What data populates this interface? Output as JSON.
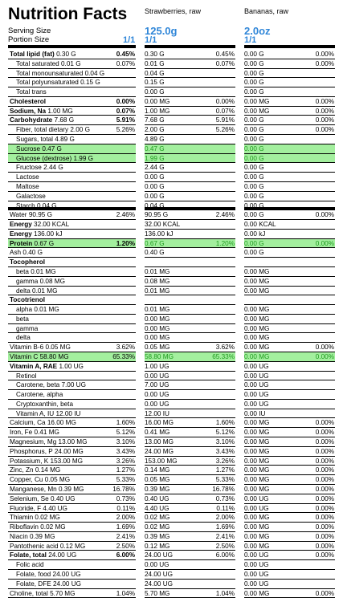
{
  "header": {
    "title": "Nutrition Facts",
    "food1": "Strawberries, raw",
    "food2": "Bananas, raw",
    "serving_size_label": "Serving Size",
    "portion_size_label": "Portion Size",
    "serving1": "125.0g",
    "serving2": "2.0oz",
    "ratio0": "1/1",
    "ratio1": "1/1",
    "ratio2": "1/1"
  },
  "rows": [
    {
      "name": "Total lipid (fat)",
      "amt": "0.30 G",
      "pct": "0.45%",
      "v1": "0.30 G",
      "p1": "0.45%",
      "v2": "0.00 G",
      "p2": "0.00%",
      "bold": true,
      "indent": false
    },
    {
      "name": "Total saturated",
      "amt": "0.01 G",
      "pct": "0.07%",
      "v1": "0.01 G",
      "p1": "0.07%",
      "v2": "0.00 G",
      "p2": "0.00%",
      "bold": false,
      "indent": true
    },
    {
      "name": "Total monounsaturated",
      "amt": "0.04 G",
      "pct": "",
      "v1": "0.04 G",
      "p1": "",
      "v2": "0.00 G",
      "p2": "",
      "bold": false,
      "indent": true
    },
    {
      "name": "Total polyunsaturated",
      "amt": "0.15 G",
      "pct": "",
      "v1": "0.15 G",
      "p1": "",
      "v2": "0.00 G",
      "p2": "",
      "bold": false,
      "indent": true
    },
    {
      "name": "Total trans",
      "amt": "",
      "pct": "",
      "v1": "0.00 G",
      "p1": "",
      "v2": "0.00 G",
      "p2": "",
      "bold": false,
      "indent": true
    },
    {
      "name": "Cholesterol",
      "amt": "",
      "pct": "0.00%",
      "v1": "0.00 MG",
      "p1": "0.00%",
      "v2": "0.00 MG",
      "p2": "0.00%",
      "bold": true,
      "indent": false
    },
    {
      "name": "Sodium, Na",
      "amt": "1.00 MG",
      "pct": "0.07%",
      "v1": "1.00 MG",
      "p1": "0.07%",
      "v2": "0.00 MG",
      "p2": "0.00%",
      "bold": true,
      "indent": false
    },
    {
      "name": "Carbohydrate",
      "amt": "7.68 G",
      "pct": "5.91%",
      "v1": "7.68 G",
      "p1": "5.91%",
      "v2": "0.00 G",
      "p2": "0.00%",
      "bold": true,
      "indent": false
    },
    {
      "name": "Fiber, total dietary",
      "amt": "2.00 G",
      "pct": "5.26%",
      "v1": "2.00 G",
      "p1": "5.26%",
      "v2": "0.00 G",
      "p2": "0.00%",
      "bold": false,
      "indent": true
    },
    {
      "name": "Sugars, total",
      "amt": "4.89 G",
      "pct": "",
      "v1": "4.89 G",
      "p1": "",
      "v2": "0.00 G",
      "p2": "",
      "bold": false,
      "indent": true
    },
    {
      "name": "Sucrose",
      "amt": "0.47 G",
      "pct": "",
      "v1": "0.47 G",
      "p1": "",
      "v2": "0.00 G",
      "p2": "",
      "bold": false,
      "indent": true,
      "highlight": true
    },
    {
      "name": "Glucose (dextrose)",
      "amt": "1.99 G",
      "pct": "",
      "v1": "1.99 G",
      "p1": "",
      "v2": "0.00 G",
      "p2": "",
      "bold": false,
      "indent": true,
      "highlight": true
    },
    {
      "name": "Fructose",
      "amt": "2.44 G",
      "pct": "",
      "v1": "2.44 G",
      "p1": "",
      "v2": "0.00 G",
      "p2": "",
      "bold": false,
      "indent": true
    },
    {
      "name": "Lactose",
      "amt": "",
      "pct": "",
      "v1": "0.00 G",
      "p1": "",
      "v2": "0.00 G",
      "p2": "",
      "bold": false,
      "indent": true
    },
    {
      "name": "Maltose",
      "amt": "",
      "pct": "",
      "v1": "0.00 G",
      "p1": "",
      "v2": "0.00 G",
      "p2": "",
      "bold": false,
      "indent": true
    },
    {
      "name": "Galactose",
      "amt": "",
      "pct": "",
      "v1": "0.00 G",
      "p1": "",
      "v2": "0.00 G",
      "p2": "",
      "bold": false,
      "indent": true
    },
    {
      "name": "Starch",
      "amt": "0.04 G",
      "pct": "",
      "v1": "0.04 G",
      "p1": "",
      "v2": "0.00 G",
      "p2": "",
      "bold": false,
      "indent": true,
      "thick": true
    },
    {
      "name": "Water",
      "amt": "90.95 G",
      "pct": "2.46%",
      "v1": "90.95 G",
      "p1": "2.46%",
      "v2": "0.00 G",
      "p2": "0.00%",
      "bold": false,
      "indent": false
    },
    {
      "name": "Energy",
      "amt": "32.00 KCAL",
      "pct": "",
      "v1": "32.00 KCAL",
      "p1": "",
      "v2": "0.00 KCAL",
      "p2": "",
      "bold": true,
      "indent": false
    },
    {
      "name": "Energy",
      "amt": "136.00 kJ",
      "pct": "",
      "v1": "136.00 kJ",
      "p1": "",
      "v2": "0.00 kJ",
      "p2": "",
      "bold": true,
      "indent": false
    },
    {
      "name": "Protein",
      "amt": "0.67 G",
      "pct": "1.20%",
      "v1": "0.67 G",
      "p1": "1.20%",
      "v2": "0.00 G",
      "p2": "0.00%",
      "bold": true,
      "indent": false,
      "highlight": true
    },
    {
      "name": "Ash",
      "amt": "0.40 G",
      "pct": "",
      "v1": "0.40 G",
      "p1": "",
      "v2": "0.00 G",
      "p2": "",
      "bold": false,
      "indent": false
    },
    {
      "name": "Tocopherol",
      "amt": "",
      "pct": "",
      "v1": "",
      "p1": "",
      "v2": "",
      "p2": "",
      "bold": true,
      "indent": false
    },
    {
      "name": "beta",
      "amt": "0.01 MG",
      "pct": "",
      "v1": "0.01 MG",
      "p1": "",
      "v2": "0.00 MG",
      "p2": "",
      "bold": false,
      "indent": true
    },
    {
      "name": "gamma",
      "amt": "0.08 MG",
      "pct": "",
      "v1": "0.08 MG",
      "p1": "",
      "v2": "0.00 MG",
      "p2": "",
      "bold": false,
      "indent": true
    },
    {
      "name": "delta",
      "amt": "0.01 MG",
      "pct": "",
      "v1": "0.01 MG",
      "p1": "",
      "v2": "0.00 MG",
      "p2": "",
      "bold": false,
      "indent": true
    },
    {
      "name": "Tocotrienol",
      "amt": "",
      "pct": "",
      "v1": "",
      "p1": "",
      "v2": "",
      "p2": "",
      "bold": true,
      "indent": false
    },
    {
      "name": "alpha",
      "amt": "0.01 MG",
      "pct": "",
      "v1": "0.01 MG",
      "p1": "",
      "v2": "0.00 MG",
      "p2": "",
      "bold": false,
      "indent": true
    },
    {
      "name": "beta",
      "amt": "",
      "pct": "",
      "v1": "0.00 MG",
      "p1": "",
      "v2": "0.00 MG",
      "p2": "",
      "bold": false,
      "indent": true
    },
    {
      "name": "gamma",
      "amt": "",
      "pct": "",
      "v1": "0.00 MG",
      "p1": "",
      "v2": "0.00 MG",
      "p2": "",
      "bold": false,
      "indent": true
    },
    {
      "name": "delta",
      "amt": "",
      "pct": "",
      "v1": "0.00 MG",
      "p1": "",
      "v2": "0.00 MG",
      "p2": "",
      "bold": false,
      "indent": true
    },
    {
      "name": "Vitamin B-6",
      "amt": "0.05 MG",
      "pct": "3.62%",
      "v1": "0.05 MG",
      "p1": "3.62%",
      "v2": "0.00 MG",
      "p2": "0.00%",
      "bold": false,
      "indent": false
    },
    {
      "name": "Vitamin C",
      "amt": "58.80 MG",
      "pct": "65.33%",
      "v1": "58.80 MG",
      "p1": "65.33%",
      "v2": "0.00 MG",
      "p2": "0.00%",
      "bold": false,
      "indent": false,
      "highlight": true
    },
    {
      "name": "Vitamin A, RAE",
      "amt": "1.00 UG",
      "pct": "",
      "v1": "1.00 UG",
      "p1": "",
      "v2": "0.00 UG",
      "p2": "",
      "bold": true,
      "indent": false
    },
    {
      "name": "Retinol",
      "amt": "",
      "pct": "",
      "v1": "0.00 UG",
      "p1": "",
      "v2": "0.00 UG",
      "p2": "",
      "bold": false,
      "indent": true
    },
    {
      "name": "Carotene, beta",
      "amt": "7.00 UG",
      "pct": "",
      "v1": "7.00 UG",
      "p1": "",
      "v2": "0.00 UG",
      "p2": "",
      "bold": false,
      "indent": true
    },
    {
      "name": "Carotene, alpha",
      "amt": "",
      "pct": "",
      "v1": "0.00 UG",
      "p1": "",
      "v2": "0.00 UG",
      "p2": "",
      "bold": false,
      "indent": true
    },
    {
      "name": "Cryptoxanthin, beta",
      "amt": "",
      "pct": "",
      "v1": "0.00 UG",
      "p1": "",
      "v2": "0.00 UG",
      "p2": "",
      "bold": false,
      "indent": true
    },
    {
      "name": "Vitamin A, IU",
      "amt": "12.00 IU",
      "pct": "",
      "v1": "12.00 IU",
      "p1": "",
      "v2": "0.00 IU",
      "p2": "",
      "bold": false,
      "indent": true
    },
    {
      "name": "Calcium, Ca",
      "amt": "16.00 MG",
      "pct": "1.60%",
      "v1": "16.00 MG",
      "p1": "1.60%",
      "v2": "0.00 MG",
      "p2": "0.00%",
      "bold": false,
      "indent": false
    },
    {
      "name": "Iron, Fe",
      "amt": "0.41 MG",
      "pct": "5.12%",
      "v1": "0.41 MG",
      "p1": "5.12%",
      "v2": "0.00 MG",
      "p2": "0.00%",
      "bold": false,
      "indent": false
    },
    {
      "name": "Magnesium, Mg",
      "amt": "13.00 MG",
      "pct": "3.10%",
      "v1": "13.00 MG",
      "p1": "3.10%",
      "v2": "0.00 MG",
      "p2": "0.00%",
      "bold": false,
      "indent": false
    },
    {
      "name": "Phosphorus, P",
      "amt": "24.00 MG",
      "pct": "3.43%",
      "v1": "24.00 MG",
      "p1": "3.43%",
      "v2": "0.00 MG",
      "p2": "0.00%",
      "bold": false,
      "indent": false
    },
    {
      "name": "Potassium, K",
      "amt": "153.00 MG",
      "pct": "3.26%",
      "v1": "153.00 MG",
      "p1": "3.26%",
      "v2": "0.00 MG",
      "p2": "0.00%",
      "bold": false,
      "indent": false
    },
    {
      "name": "Zinc, Zn",
      "amt": "0.14 MG",
      "pct": "1.27%",
      "v1": "0.14 MG",
      "p1": "1.27%",
      "v2": "0.00 MG",
      "p2": "0.00%",
      "bold": false,
      "indent": false
    },
    {
      "name": "Copper, Cu",
      "amt": "0.05 MG",
      "pct": "5.33%",
      "v1": "0.05 MG",
      "p1": "5.33%",
      "v2": "0.00 MG",
      "p2": "0.00%",
      "bold": false,
      "indent": false
    },
    {
      "name": "Manganese, Mn",
      "amt": "0.39 MG",
      "pct": "16.78%",
      "v1": "0.39 MG",
      "p1": "16.78%",
      "v2": "0.00 MG",
      "p2": "0.00%",
      "bold": false,
      "indent": false
    },
    {
      "name": "Selenium, Se",
      "amt": "0.40 UG",
      "pct": "0.73%",
      "v1": "0.40 UG",
      "p1": "0.73%",
      "v2": "0.00 UG",
      "p2": "0.00%",
      "bold": false,
      "indent": false
    },
    {
      "name": "Fluoride, F",
      "amt": "4.40 UG",
      "pct": "0.11%",
      "v1": "4.40 UG",
      "p1": "0.11%",
      "v2": "0.00 UG",
      "p2": "0.00%",
      "bold": false,
      "indent": false
    },
    {
      "name": "Thiamin",
      "amt": "0.02 MG",
      "pct": "2.00%",
      "v1": "0.02 MG",
      "p1": "2.00%",
      "v2": "0.00 MG",
      "p2": "0.00%",
      "bold": false,
      "indent": false
    },
    {
      "name": "Riboflavin",
      "amt": "0.02 MG",
      "pct": "1.69%",
      "v1": "0.02 MG",
      "p1": "1.69%",
      "v2": "0.00 MG",
      "p2": "0.00%",
      "bold": false,
      "indent": false
    },
    {
      "name": "Niacin",
      "amt": "0.39 MG",
      "pct": "2.41%",
      "v1": "0.39 MG",
      "p1": "2.41%",
      "v2": "0.00 MG",
      "p2": "0.00%",
      "bold": false,
      "indent": false
    },
    {
      "name": "Pantothenic acid",
      "amt": "0.12 MG",
      "pct": "2.50%",
      "v1": "0.12 MG",
      "p1": "2.50%",
      "v2": "0.00 MG",
      "p2": "0.00%",
      "bold": false,
      "indent": false
    },
    {
      "name": "Folate, total",
      "amt": "24.00 UG",
      "pct": "6.00%",
      "v1": "24.00 UG",
      "p1": "6.00%",
      "v2": "0.00 UG",
      "p2": "0.00%",
      "bold": true,
      "indent": false
    },
    {
      "name": "Folic acid",
      "amt": "",
      "pct": "",
      "v1": "0.00 UG",
      "p1": "",
      "v2": "0.00 UG",
      "p2": "",
      "bold": false,
      "indent": true
    },
    {
      "name": "Folate, food",
      "amt": "24.00 UG",
      "pct": "",
      "v1": "24.00 UG",
      "p1": "",
      "v2": "0.00 UG",
      "p2": "",
      "bold": false,
      "indent": true
    },
    {
      "name": "Folate, DFE",
      "amt": "24.00 UG",
      "pct": "",
      "v1": "24.00 UG",
      "p1": "",
      "v2": "0.00 UG",
      "p2": "",
      "bold": false,
      "indent": true
    },
    {
      "name": "Choline, total",
      "amt": "5.70 MG",
      "pct": "1.04%",
      "v1": "5.70 MG",
      "p1": "1.04%",
      "v2": "0.00 MG",
      "p2": "0.00%",
      "bold": false,
      "indent": false
    }
  ]
}
